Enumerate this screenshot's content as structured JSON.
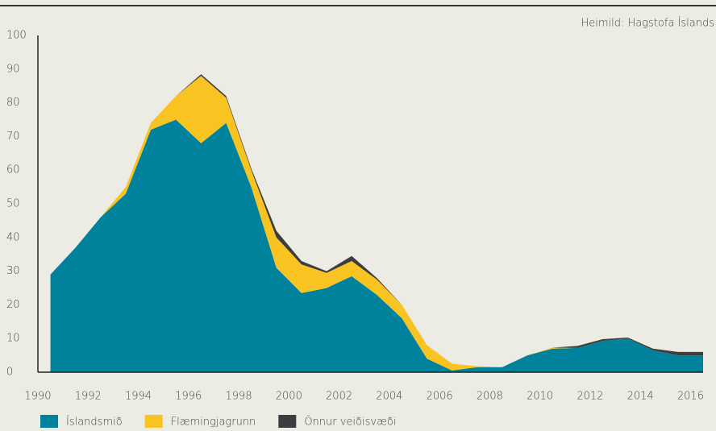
{
  "chart_data": {
    "type": "stacked_area",
    "source": "Heimild: Hagstofa Íslands",
    "x": [
      1990.5,
      1991.5,
      1992.5,
      1993.5,
      1994.5,
      1995.5,
      1996.5,
      1997.5,
      1998.5,
      1999.5,
      2000.5,
      2001.5,
      2002.5,
      2003.5,
      2004.5,
      2005.5,
      2006.5,
      2007.5,
      2008.5,
      2009.5,
      2010.5,
      2011.5,
      2012.5,
      2013.5,
      2014.5,
      2015.5,
      2016.5
    ],
    "series": [
      {
        "name": "Íslandsmið",
        "color": "#00819c",
        "values": [
          29,
          37,
          46,
          53,
          72,
          75,
          68,
          74,
          55,
          31,
          23.5,
          25,
          28.5,
          23,
          16,
          4,
          0.5,
          1.5,
          1.5,
          5,
          7,
          7.2,
          9.3,
          10,
          6.5,
          5,
          5
        ]
      },
      {
        "name": "Flæmingjagrunn",
        "color": "#f9c321",
        "values": [
          0,
          0,
          0,
          2,
          2,
          7,
          20,
          7.5,
          5,
          9,
          8.5,
          4.5,
          4.5,
          4.5,
          4,
          4,
          2,
          0.3,
          0,
          0,
          0.3,
          0,
          0,
          0,
          0,
          0,
          0
        ]
      },
      {
        "name": "Önnur veiðisvæði",
        "color": "#3d3d3d",
        "values": [
          0,
          0,
          0,
          0,
          0,
          0,
          0.5,
          0.5,
          0.5,
          2,
          1,
          0.5,
          1.5,
          0.5,
          0,
          0,
          0,
          0,
          0,
          0,
          0,
          0.6,
          0.5,
          0.3,
          0.5,
          1,
          1
        ]
      }
    ],
    "xlim": [
      1990,
      2016.5
    ],
    "xticks": [
      1990,
      1992,
      1994,
      1996,
      1998,
      2000,
      2002,
      2004,
      2006,
      2008,
      2010,
      2012,
      2014,
      2016
    ],
    "ylim": [
      0,
      100
    ],
    "yticks": [
      0,
      10,
      20,
      30,
      40,
      50,
      60,
      70,
      80,
      90,
      100
    ],
    "grid": false,
    "legend": "bottom"
  }
}
